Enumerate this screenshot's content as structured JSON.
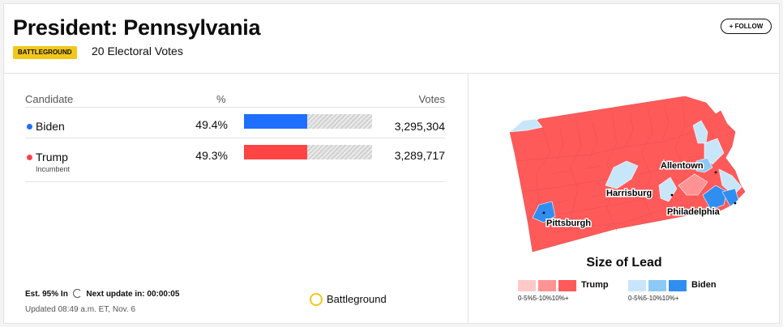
{
  "header": {
    "title": "President: Pennsylvania",
    "badge": "BATTLEGROUND",
    "electoral_votes": "20 Electoral Votes",
    "follow_label": "+ FOLLOW"
  },
  "table": {
    "col_candidate": "Candidate",
    "col_pct": "%",
    "col_votes": "Votes",
    "rows": [
      {
        "name": "Biden",
        "subtitle": "",
        "pct": "49.4%",
        "votes": "3,295,304",
        "share": 0.494,
        "color": "#1f6fff"
      },
      {
        "name": "Trump",
        "subtitle": "Incumbent",
        "pct": "49.3%",
        "votes": "3,289,717",
        "share": 0.493,
        "color": "#ff4444"
      }
    ]
  },
  "footer": {
    "est_in": "Est. 95% In",
    "next_update": "Next update in: 00:00:05",
    "updated": "Updated 08:49 a.m. ET, Nov. 6",
    "battleground_label": "Battleground"
  },
  "map": {
    "cities": [
      "Allentown",
      "Harrisburg",
      "Pittsburgh",
      "Philadelphia"
    ]
  },
  "legend": {
    "title": "Size of Lead",
    "trump_label": "Trump",
    "biden_label": "Biden",
    "trump_ticks": "0-5%5-10%10%+",
    "biden_ticks": "0-5%5-10%10%+",
    "trump_colors": [
      "#ffc9c9",
      "#ff9393",
      "#ff5a5a"
    ],
    "biden_colors": [
      "#c7e6fa",
      "#8ccaf5",
      "#2f8ef0"
    ]
  }
}
